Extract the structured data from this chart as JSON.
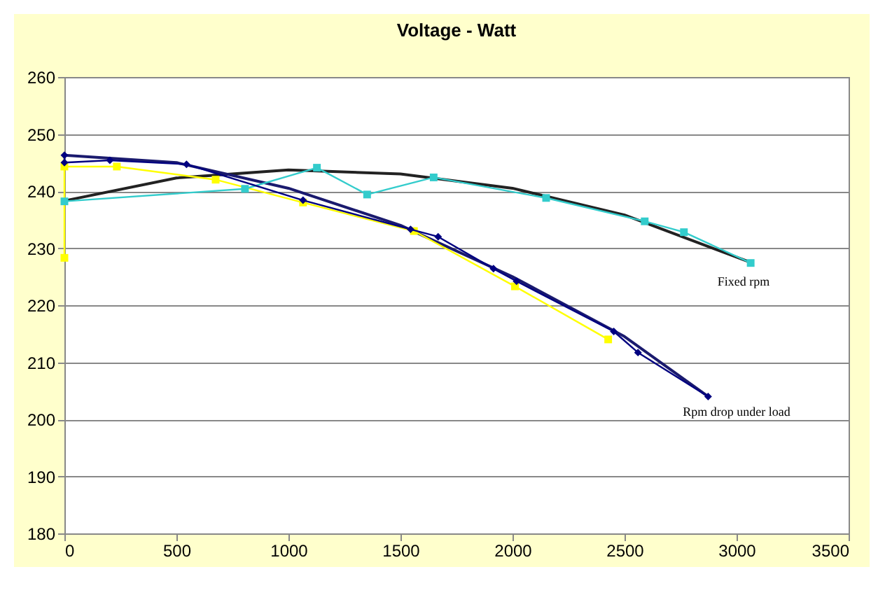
{
  "chart_data": {
    "type": "line",
    "title": "Voltage - Watt",
    "xlim": [
      0,
      3500
    ],
    "xticks": [
      0,
      500,
      1000,
      1500,
      2000,
      2500,
      3000,
      3500
    ],
    "ylim": [
      180,
      260
    ],
    "yticks": [
      180,
      190,
      200,
      210,
      220,
      230,
      240,
      250,
      260
    ],
    "grid": "y",
    "series": [
      {
        "color": "#ffff00",
        "marker": "square",
        "x": [
          0,
          0,
          234,
          675,
          1065,
          1560,
          2011,
          2427
        ],
        "values": [
          228.3,
          244.3,
          244.3,
          242,
          238,
          233,
          223.3,
          214
        ]
      },
      {
        "color": "#33cccc",
        "marker": "square",
        "x": [
          0,
          806,
          1127,
          1351,
          1648,
          2150,
          2590,
          2765,
          3063
        ],
        "values": [
          238.2,
          240.4,
          244.1,
          239.4,
          242.4,
          238.8,
          234.7,
          232.8,
          227.4
        ]
      },
      {
        "color": "#000080",
        "marker": "diamond",
        "x": [
          0,
          0,
          203,
          545,
          1065,
          1545,
          1668,
          1915,
          2018,
          2452,
          2560,
          2873
        ],
        "values": [
          246.3,
          245,
          245.4,
          244.7,
          238.4,
          233.3,
          232,
          226.4,
          224.2,
          215.4,
          211.7,
          204
        ]
      },
      {
        "color": "#222222",
        "marker": "none",
        "x": [
          0,
          500,
          1000,
          1500,
          2000,
          2500,
          3063
        ],
        "values": [
          238.3,
          242.3,
          243.7,
          243,
          240.5,
          235.8,
          227.5
        ]
      },
      {
        "color": "#1a1a6e",
        "marker": "none",
        "x": [
          0,
          500,
          1000,
          1500,
          2000,
          2500,
          2873
        ],
        "values": [
          246.3,
          245,
          240.5,
          234,
          225,
          214.5,
          204
        ]
      }
    ],
    "annotations": [
      "Fixed rpm",
      "Rpm drop under load"
    ]
  }
}
